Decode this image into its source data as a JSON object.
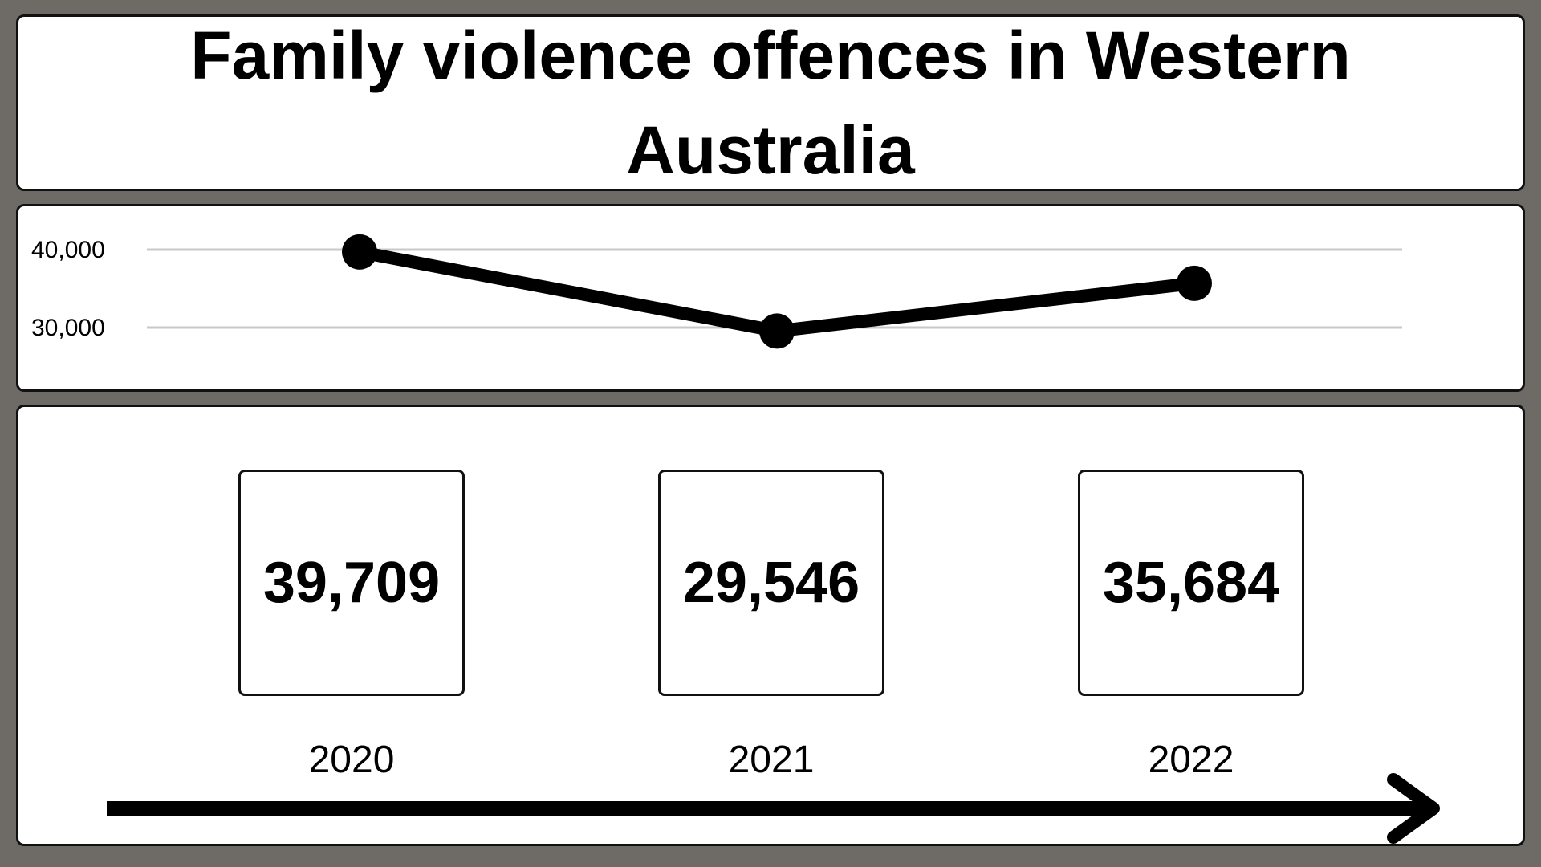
{
  "title": "Family violence offences in Western Australia",
  "colors": {
    "background": "#6e6a66",
    "panel": "#ffffff",
    "line": "#000000",
    "gridline": "#c8c8c8"
  },
  "chart_data": {
    "type": "line",
    "title": "Family violence offences in Western Australia",
    "x": [
      "2020",
      "2021",
      "2022"
    ],
    "series": [
      {
        "values": [
          39709,
          29546,
          35684
        ]
      }
    ],
    "y_ticks": [
      30000,
      40000
    ],
    "y_tick_labels": [
      "30,000",
      "40,000"
    ],
    "grid": true,
    "xlabel": "",
    "ylabel": ""
  },
  "cards": [
    {
      "year": "2020",
      "value_label": "39,709"
    },
    {
      "year": "2021",
      "value_label": "29,546"
    },
    {
      "year": "2022",
      "value_label": "35,684"
    }
  ]
}
